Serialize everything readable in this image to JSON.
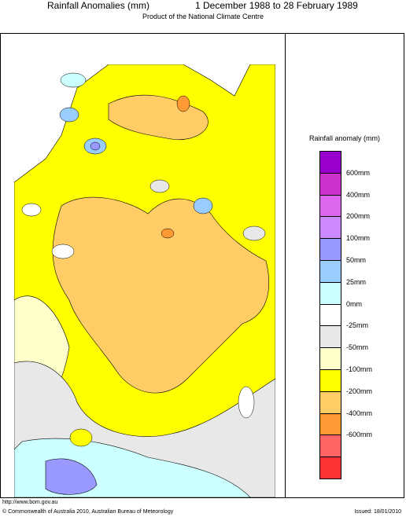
{
  "header": {
    "title": "Rainfall Anomalies (mm)",
    "period": "1 December 1988 to 28 February 1989",
    "subtitle": "Product of the National Climate Centre"
  },
  "legend": {
    "title": "Rainfall anomaly (mm)",
    "swatches": [
      {
        "color": "#9900cc",
        "label": ""
      },
      {
        "color": "#cc33cc",
        "label": "600mm"
      },
      {
        "color": "#dd66ee",
        "label": "400mm"
      },
      {
        "color": "#cc88ff",
        "label": "200mm"
      },
      {
        "color": "#9999ff",
        "label": "100mm"
      },
      {
        "color": "#99ccff",
        "label": "50mm"
      },
      {
        "color": "#ccffff",
        "label": "25mm"
      },
      {
        "color": "#ffffff",
        "label": "0mm"
      },
      {
        "color": "#e8e8e8",
        "label": "-25mm"
      },
      {
        "color": "#ffffcc",
        "label": "-50mm"
      },
      {
        "color": "#ffff00",
        "label": "-100mm"
      },
      {
        "color": "#ffcc66",
        "label": "-200mm"
      },
      {
        "color": "#ff9933",
        "label": "-400mm"
      },
      {
        "color": "#ff6666",
        "label": "-600mm"
      },
      {
        "color": "#ff3333",
        "label": ""
      }
    ]
  },
  "footer": {
    "url": "http://www.bom.gov.au",
    "copyright": "© Commonwealth of Australia 2010, Australian Bureau of Meteorology",
    "issued": "Issued: 18/01/2010"
  }
}
